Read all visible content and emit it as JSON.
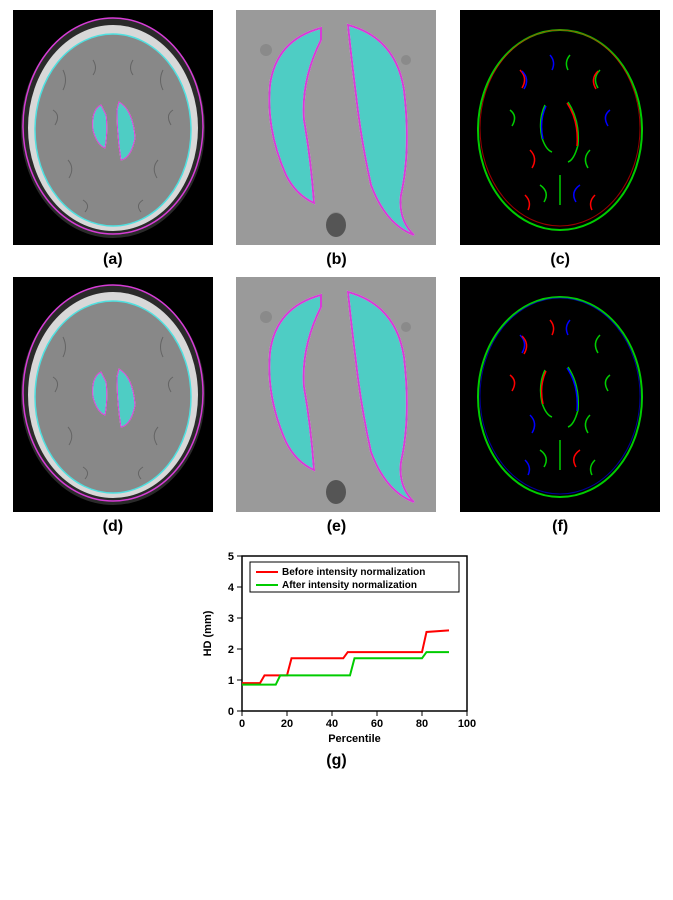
{
  "figure": {
    "panels": [
      {
        "key": "a",
        "label": "(a)",
        "type": "mri-axial-with-ventricle-overlay",
        "overlay_fill": "#4ecdc4",
        "contour_outer": "#d63cd6",
        "contour_inner": "#4fe0e0",
        "background": "#000000",
        "brain_gray": "#808080"
      },
      {
        "key": "b",
        "label": "(b)",
        "type": "ventricle-closeup",
        "overlay_fill": "#4ecdc4",
        "contour": "#d63cd6",
        "background": "#9a9a9a"
      },
      {
        "key": "c",
        "label": "(c)",
        "type": "edge-map",
        "colors": {
          "red": "#ff0000",
          "green": "#00cc00",
          "blue": "#0000ff"
        },
        "background": "#000000"
      },
      {
        "key": "d",
        "label": "(d)",
        "type": "mri-axial-with-ventricle-overlay",
        "overlay_fill": "#4ecdc4",
        "contour_outer": "#d63cd6",
        "contour_inner": "#4fe0e0",
        "background": "#000000",
        "brain_gray": "#808080"
      },
      {
        "key": "e",
        "label": "(e)",
        "type": "ventricle-closeup",
        "overlay_fill": "#4ecdc4",
        "contour": "#d63cd6",
        "background": "#9a9a9a"
      },
      {
        "key": "f",
        "label": "(f)",
        "type": "edge-map",
        "colors": {
          "red": "#ff0000",
          "green": "#00cc00",
          "blue": "#0000ff"
        },
        "background": "#000000"
      }
    ],
    "chart": {
      "label": "(g)",
      "type": "line",
      "xlabel": "Percentile",
      "ylabel": "HD (mm)",
      "xlim": [
        0,
        100
      ],
      "xtick_step": 20,
      "ylim": [
        0,
        5
      ],
      "ytick_step": 1,
      "background_color": "#ffffff",
      "axis_color": "#000000",
      "font_size_axis": 11,
      "font_size_legend": 10,
      "line_width": 2,
      "series": [
        {
          "name": "Before intensity normalization",
          "color": "#ff0000",
          "x": [
            0,
            8,
            10,
            20,
            22,
            45,
            47,
            80,
            82,
            92
          ],
          "y": [
            0.9,
            0.9,
            1.15,
            1.15,
            1.7,
            1.7,
            1.9,
            1.9,
            2.55,
            2.6
          ]
        },
        {
          "name": "After intensity normalization",
          "color": "#00cc00",
          "x": [
            0,
            15,
            17,
            48,
            50,
            80,
            82,
            92
          ],
          "y": [
            0.85,
            0.85,
            1.15,
            1.15,
            1.7,
            1.7,
            1.9,
            1.9
          ]
        }
      ],
      "legend_position": "top-right-inside"
    }
  }
}
